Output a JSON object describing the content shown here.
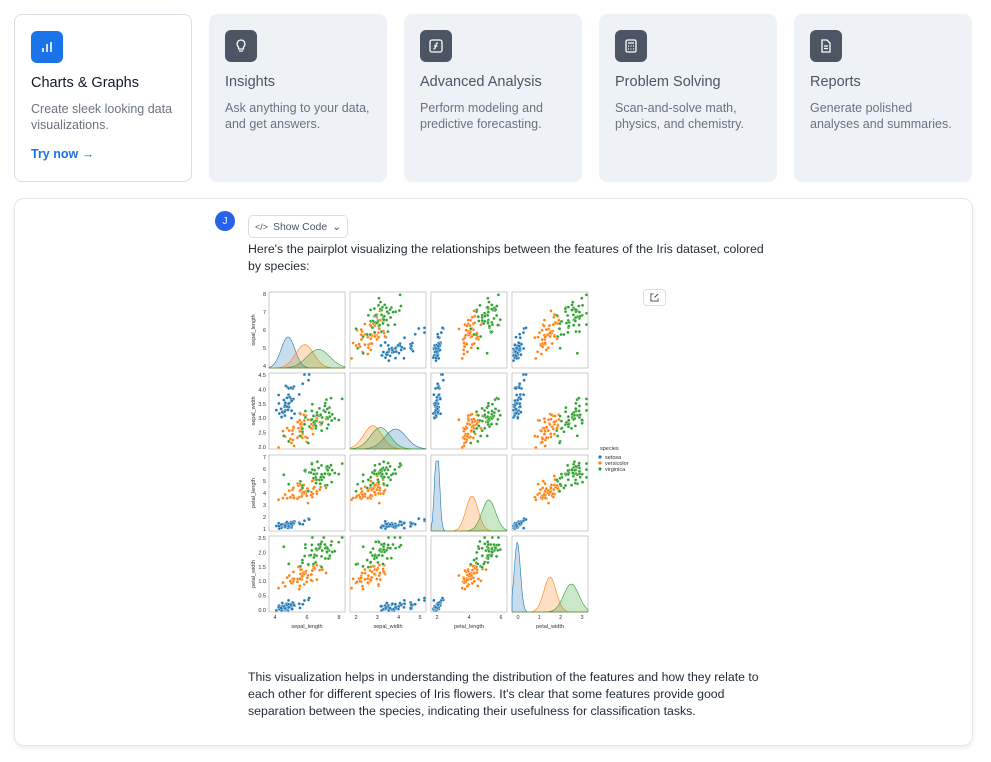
{
  "cards": [
    {
      "title": "Charts & Graphs",
      "description": "Create sleek looking data visualizations.",
      "link": "Try now →"
    },
    {
      "title": "Insights",
      "description": "Ask anything to your data, and get answers."
    },
    {
      "title": "Advanced Analysis",
      "description": "Perform modeling and predictive forecasting."
    },
    {
      "title": "Problem Solving",
      "description": "Scan-and-solve math, physics, and chemistry."
    },
    {
      "title": "Reports",
      "description": "Generate polished analyses and summaries."
    }
  ],
  "chat": {
    "avatar": "J",
    "show_code": "Show Code",
    "message": "Here's the pairplot visualizing the relationships between the features of the Iris dataset, colored by species:",
    "plot": {
      "variables": [
        "sepal_length",
        "sepal_width",
        "petal_length",
        "petal_width"
      ],
      "yticks": [
        [
          "8",
          "7",
          "6",
          "5",
          "4"
        ],
        [
          "4.5",
          "4.0",
          "3.5",
          "3.0",
          "2.5",
          "2.0"
        ],
        [
          "7",
          "6",
          "5",
          "4",
          "3",
          "2",
          "1"
        ],
        [
          "2.5",
          "2.0",
          "1.5",
          "1.0",
          "0.5",
          "0.0"
        ]
      ],
      "xticks": [
        [
          "4",
          "6",
          "8"
        ],
        [
          "2",
          "3",
          "4",
          "5"
        ],
        [
          "2",
          "4",
          "6"
        ],
        [
          "0",
          "1",
          "2",
          "3"
        ]
      ],
      "legend": {
        "title": "species",
        "items": [
          "setosa",
          "versicolor",
          "virginica"
        ]
      }
    },
    "followup": "This visualization helps in understanding the distribution of the features and how they relate to each other for different species of Iris flowers. It's clear that some features provide good separation between the species, indicating their usefulness for classification tasks."
  }
}
